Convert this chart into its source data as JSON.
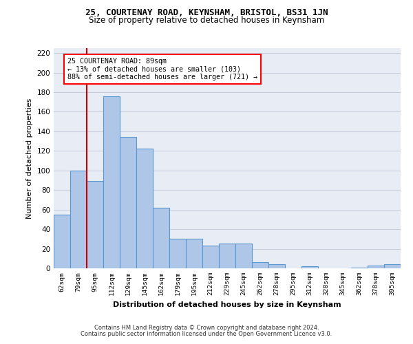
{
  "title": "25, COURTENAY ROAD, KEYNSHAM, BRISTOL, BS31 1JN",
  "subtitle": "Size of property relative to detached houses in Keynsham",
  "xlabel": "Distribution of detached houses by size in Keynsham",
  "ylabel": "Number of detached properties",
  "categories": [
    "62sqm",
    "79sqm",
    "95sqm",
    "112sqm",
    "129sqm",
    "145sqm",
    "162sqm",
    "179sqm",
    "195sqm",
    "212sqm",
    "229sqm",
    "245sqm",
    "262sqm",
    "278sqm",
    "295sqm",
    "312sqm",
    "328sqm",
    "345sqm",
    "362sqm",
    "378sqm",
    "395sqm"
  ],
  "values": [
    55,
    100,
    89,
    176,
    134,
    122,
    62,
    30,
    30,
    23,
    25,
    25,
    6,
    4,
    0,
    2,
    0,
    0,
    1,
    3,
    4
  ],
  "bar_color": "#aec6e8",
  "bar_edge_color": "#5a96d0",
  "vline_x": 1.5,
  "vline_color": "#cc0000",
  "annotation_text": "25 COURTENAY ROAD: 89sqm\n← 13% of detached houses are smaller (103)\n88% of semi-detached houses are larger (721) →",
  "ylim": [
    0,
    225
  ],
  "yticks": [
    0,
    20,
    40,
    60,
    80,
    100,
    120,
    140,
    160,
    180,
    200,
    220
  ],
  "bg_color": "#e8edf5",
  "grid_color": "#c8d0e0",
  "footer_line1": "Contains HM Land Registry data © Crown copyright and database right 2024.",
  "footer_line2": "Contains public sector information licensed under the Open Government Licence v3.0."
}
